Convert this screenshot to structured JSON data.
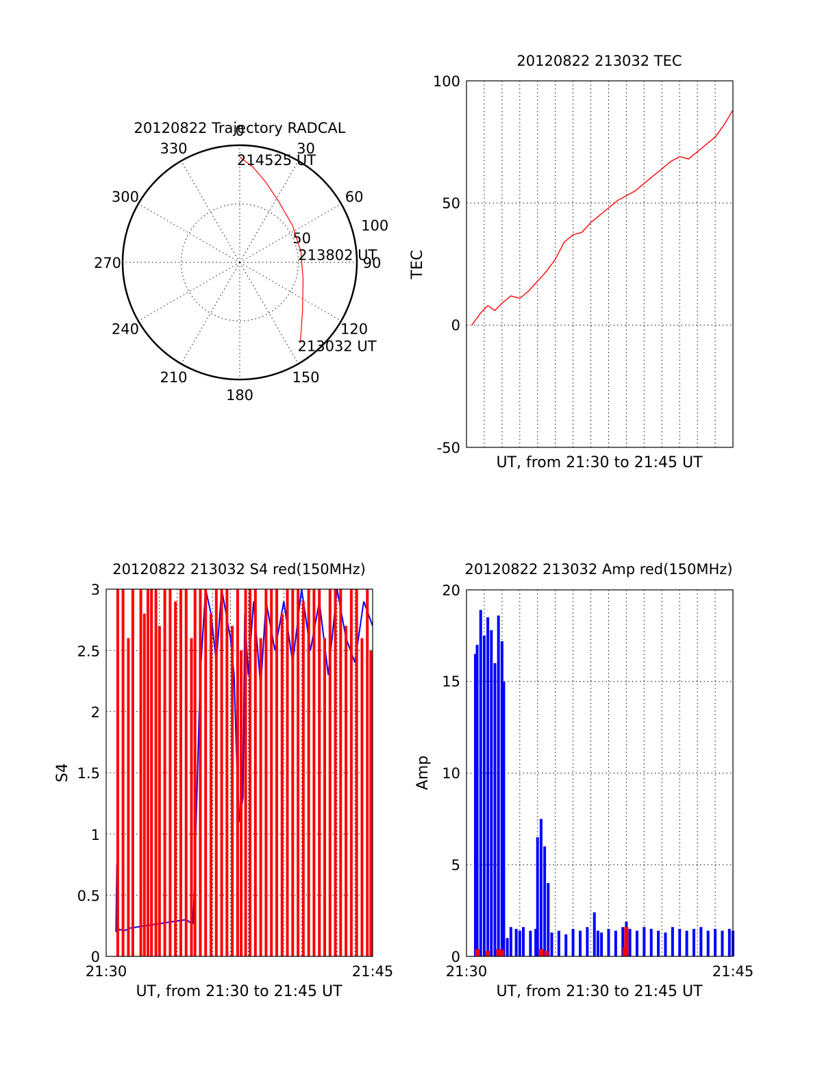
{
  "chart_data": [
    {
      "type": "scatter",
      "subtype": "polar",
      "title": "20120822 Trajectory RADCAL",
      "angle_labels": [
        "0",
        "30",
        "60",
        "90",
        "120",
        "150",
        "180",
        "210",
        "240",
        "270",
        "300",
        "330"
      ],
      "radius_labels": [
        "50",
        "100"
      ],
      "rlim": [
        0,
        100
      ],
      "grid": true,
      "series": [
        {
          "color": "#ff0000",
          "points": [
            {
              "az": 0,
              "r": 90
            },
            {
              "az": 8,
              "r": 82
            },
            {
              "az": 18,
              "r": 72
            },
            {
              "az": 32,
              "r": 62
            },
            {
              "az": 55,
              "r": 55
            },
            {
              "az": 80,
              "r": 53
            },
            {
              "az": 105,
              "r": 56
            },
            {
              "az": 128,
              "r": 68
            },
            {
              "az": 143,
              "r": 86
            }
          ]
        }
      ],
      "annotations": [
        {
          "text": "214525 UT",
          "az": 0,
          "r": 90
        },
        {
          "text": "213802 UT",
          "az": 80,
          "r": 53
        },
        {
          "text": "213032 UT",
          "az": 143,
          "r": 86
        }
      ]
    },
    {
      "type": "line",
      "title": "20120822 213032 TEC",
      "xlabel": "UT, from 21:30 to 21:45 UT",
      "ylabel": "TEC",
      "xlim": [
        0,
        15
      ],
      "ylim": [
        -50,
        100
      ],
      "y_ticks": [
        "100",
        "50",
        "0",
        "-50"
      ],
      "grid": true,
      "series": [
        {
          "color": "#ff0000",
          "x": [
            0.3,
            0.8,
            1.2,
            1.6,
            2.0,
            2.5,
            3.0,
            3.5,
            4.0,
            4.5,
            5.0,
            5.5,
            6.0,
            6.5,
            7.0,
            7.5,
            8.0,
            8.5,
            9.0,
            9.5,
            10.0,
            10.5,
            11.0,
            11.5,
            12.0,
            12.5,
            13.0,
            13.5,
            14.0,
            14.5,
            15.0
          ],
          "y": [
            0,
            5,
            8,
            6,
            9,
            12,
            11,
            14,
            18,
            22,
            27,
            34,
            37,
            38,
            42,
            45,
            48,
            51,
            53,
            55,
            58,
            61,
            64,
            67,
            69,
            68,
            71,
            74,
            77,
            82,
            88
          ]
        }
      ]
    },
    {
      "type": "line",
      "title": "20120822 213032 S4 red(150MHz)",
      "xlabel": "UT, from 21:30 to 21:45 UT",
      "ylabel": "S4",
      "x_ticks": [
        "21:30",
        "21:45"
      ],
      "y_ticks": [
        "0",
        "0.5",
        "1",
        "1.5",
        "2",
        "2.5",
        "3"
      ],
      "xlim": [
        0,
        15
      ],
      "ylim": [
        0,
        3
      ],
      "grid": true,
      "series": [
        {
          "color": "#0000ff",
          "x": [
            0.55,
            0.6,
            0.65,
            0.75,
            1.0,
            1.2,
            1.3,
            4.5,
            4.7,
            4.9,
            5.3,
            5.6,
            5.9,
            6.2,
            6.5,
            7.0,
            7.2,
            7.35,
            7.5,
            7.7,
            7.8,
            8.0,
            8.3,
            8.7,
            9.0,
            9.5,
            10.0,
            10.5,
            11.0,
            11.5,
            12.0,
            12.5,
            13.0,
            13.5,
            14.0,
            14.5,
            15.0
          ],
          "y": [
            0.2,
            0.75,
            0.2,
            0.22,
            0.21,
            0.22,
            0.23,
            0.3,
            0.28,
            0.27,
            2.3,
            3.0,
            2.8,
            2.4,
            3.0,
            2.6,
            2.3,
            1.6,
            1.1,
            1.3,
            2.8,
            2.3,
            2.9,
            2.2,
            2.9,
            2.5,
            2.9,
            2.4,
            3.0,
            2.5,
            2.9,
            2.3,
            3.0,
            2.6,
            2.4,
            2.9,
            2.7
          ]
        },
        {
          "color": "#ff0000",
          "x": [
            0.65,
            0.95,
            1.25,
            1.5,
            1.95,
            2.15,
            2.35,
            2.55,
            2.8,
            3.0,
            3.3,
            3.6,
            3.9,
            4.2,
            4.5,
            4.8,
            5.0,
            5.3,
            5.6,
            5.9,
            6.2,
            6.5,
            6.8,
            7.1,
            7.4,
            7.6,
            7.85,
            8.1,
            8.4,
            8.7,
            9.0,
            9.3,
            9.6,
            9.9,
            10.2,
            10.5,
            10.8,
            11.1,
            11.4,
            11.7,
            12.0,
            12.3,
            12.6,
            12.9,
            13.2,
            13.5,
            13.8,
            14.1,
            14.4,
            14.7,
            14.9
          ],
          "y": [
            3.0,
            3.0,
            2.6,
            3.0,
            3.0,
            2.8,
            3.0,
            3.0,
            3.0,
            2.7,
            3.0,
            3.0,
            2.9,
            3.0,
            3.0,
            2.6,
            3.0,
            3.0,
            3.0,
            2.8,
            3.0,
            3.0,
            3.0,
            2.7,
            3.0,
            2.5,
            3.0,
            3.0,
            3.0,
            2.6,
            3.0,
            3.0,
            3.0,
            2.8,
            3.0,
            3.0,
            3.0,
            2.9,
            3.0,
            3.0,
            3.0,
            2.6,
            3.0,
            3.0,
            3.0,
            2.7,
            3.0,
            3.0,
            2.6,
            3.0,
            2.5
          ]
        }
      ]
    },
    {
      "type": "line",
      "title": "20120822 213032 Amp red(150MHz)",
      "xlabel": "UT, from 21:30 to 21:45 UT",
      "ylabel": "Amp",
      "x_ticks": [
        "21:30",
        "21:45"
      ],
      "y_ticks": [
        "0",
        "5",
        "10",
        "15",
        "20"
      ],
      "xlim": [
        0,
        15
      ],
      "ylim": [
        0,
        20
      ],
      "grid": true,
      "series": [
        {
          "color": "#0000ff",
          "x": [
            0.5,
            0.6,
            0.8,
            1.0,
            1.2,
            1.4,
            1.6,
            1.8,
            2.0,
            2.1,
            2.3,
            2.5,
            2.8,
            3.0,
            3.2,
            3.6,
            3.9,
            4.0,
            4.2,
            4.4,
            4.6,
            4.8,
            5.2,
            5.6,
            6.0,
            6.4,
            6.8,
            7.2,
            7.4,
            7.6,
            8.0,
            8.4,
            8.8,
            9.0,
            9.2,
            9.6,
            10.0,
            10.4,
            10.8,
            11.2,
            11.6,
            12.0,
            12.4,
            12.8,
            13.2,
            13.6,
            14.0,
            14.4,
            14.8,
            15.0
          ],
          "y": [
            16.5,
            17.0,
            18.9,
            17.5,
            18.5,
            17.8,
            16.0,
            18.6,
            17.2,
            15.0,
            1.0,
            1.6,
            1.5,
            1.4,
            1.6,
            1.4,
            1.5,
            6.5,
            7.5,
            6.0,
            4.0,
            1.3,
            1.4,
            1.2,
            1.5,
            1.4,
            1.6,
            2.4,
            1.4,
            1.3,
            1.5,
            1.4,
            1.6,
            1.9,
            1.5,
            1.4,
            1.6,
            1.5,
            1.4,
            1.3,
            1.6,
            1.5,
            1.4,
            1.5,
            1.6,
            1.4,
            1.5,
            1.4,
            1.5,
            1.4
          ]
        },
        {
          "color": "#ff0000",
          "x": [
            0.6,
            1.2,
            1.8,
            2.0,
            4.2,
            4.5,
            8.9,
            9.0
          ],
          "y": [
            0.4,
            0.3,
            0.4,
            0.35,
            0.4,
            0.3,
            0.5,
            1.6
          ]
        }
      ]
    }
  ]
}
